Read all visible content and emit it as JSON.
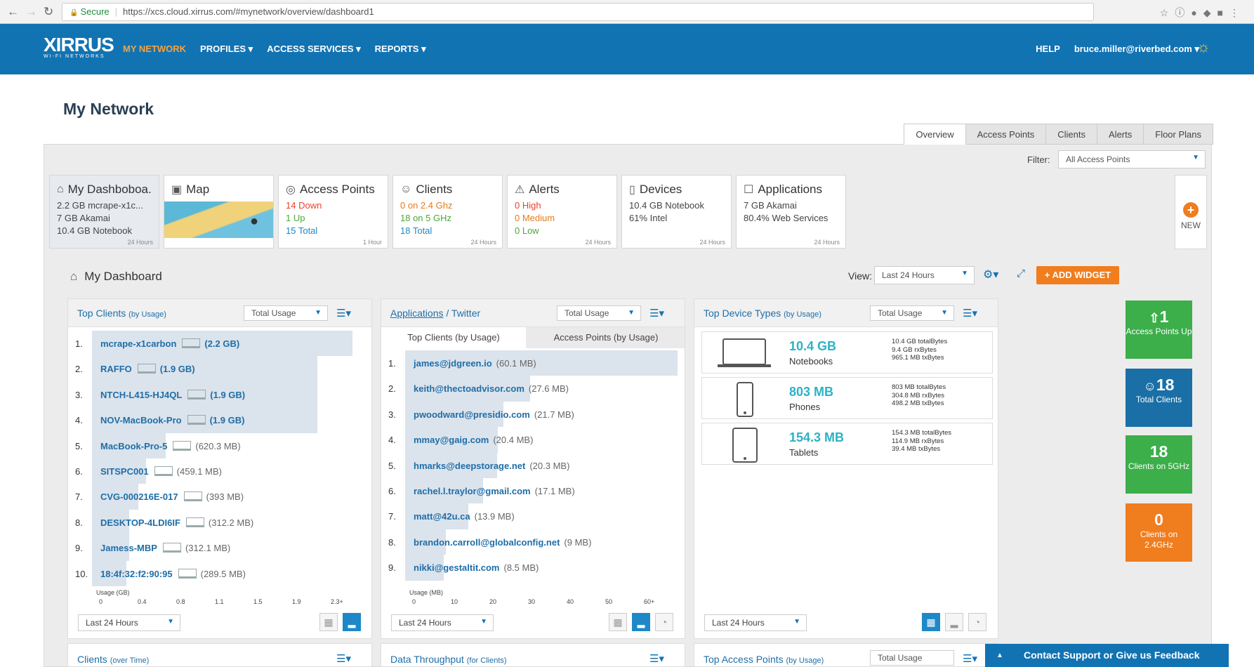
{
  "browser": {
    "secure_label": "Secure",
    "url": "https://xcs.cloud.xirrus.com/#mynetwork/overview/dashboard1"
  },
  "header": {
    "logo": "XIRRUS",
    "logo_sub": "WI-FI NETWORKS",
    "nav": [
      "MY NETWORK",
      "PROFILES ▾",
      "ACCESS SERVICES ▾",
      "REPORTS ▾"
    ],
    "help": "HELP",
    "user": "bruce.miller@riverbed.com ▾"
  },
  "page": {
    "title": "My Network",
    "tabs": [
      "Overview",
      "Access Points",
      "Clients",
      "Alerts",
      "Floor Plans"
    ],
    "filter_label": "Filter:",
    "filter_value": "All Access Points"
  },
  "cards": {
    "dashboard": {
      "title": "My Dashboboa...",
      "lines": [
        "2.2 GB mcrape-x1c...",
        "7 GB Akamai",
        "10.4 GB Notebook"
      ],
      "age": "24 Hours"
    },
    "map": {
      "title": "Map"
    },
    "access_points": {
      "title": "Access Points",
      "lines": [
        "14 Down",
        "1 Up",
        "15 Total"
      ],
      "age": "1 Hour"
    },
    "clients": {
      "title": "Clients",
      "lines": [
        "0 on 2.4 Ghz",
        "18 on 5 GHz",
        "18 Total"
      ],
      "age": "24 Hours"
    },
    "alerts": {
      "title": "Alerts",
      "lines": [
        "0 High",
        "0 Medium",
        "0 Low"
      ],
      "age": "24 Hours"
    },
    "devices": {
      "title": "Devices",
      "lines": [
        "10.4 GB Notebook",
        "61% Intel"
      ],
      "age": "24 Hours"
    },
    "applications": {
      "title": "Applications",
      "lines": [
        "7 GB Akamai",
        "80.4% Web Services"
      ],
      "age": "24 Hours"
    },
    "new_label": "NEW"
  },
  "dashboard": {
    "title": "My Dashboard",
    "view_label": "View:",
    "view_value": "Last 24 Hours",
    "add_widget": "+ ADD WIDGET"
  },
  "top_clients": {
    "title": "Top Clients",
    "qualifier": "(by Usage)",
    "select": "Total Usage",
    "axis_label": "Usage (GB)",
    "ticks": [
      "0",
      "0.4",
      "0.8",
      "1.1",
      "1.5",
      "1.9",
      "2.3+"
    ],
    "footer_select": "Last 24 Hours",
    "rows": [
      {
        "rank": "1.",
        "name": "mcrape-x1carbon",
        "value": "(2.2 GB)",
        "usage": 2.2
      },
      {
        "rank": "2.",
        "name": "RAFFO",
        "value": "(1.9 GB)",
        "usage": 1.9
      },
      {
        "rank": "3.",
        "name": "NTCH-L415-HJ4QL",
        "value": "(1.9 GB)",
        "usage": 1.9
      },
      {
        "rank": "4.",
        "name": "NOV-MacBook-Pro",
        "value": "(1.9 GB)",
        "usage": 1.9
      },
      {
        "rank": "5.",
        "name": "MacBook-Pro-5",
        "value": "(620.3 MB)",
        "usage": 0.6203
      },
      {
        "rank": "6.",
        "name": "SITSPC001",
        "value": "(459.1 MB)",
        "usage": 0.4591
      },
      {
        "rank": "7.",
        "name": "CVG-000216E-017",
        "value": "(393 MB)",
        "usage": 0.393
      },
      {
        "rank": "8.",
        "name": "DESKTOP-4LDI6IF",
        "value": "(312.2 MB)",
        "usage": 0.3122
      },
      {
        "rank": "9.",
        "name": "Jamess-MBP",
        "value": "(312.1 MB)",
        "usage": 0.3121
      },
      {
        "rank": "10.",
        "name": "18:4f:32:f2:90:95",
        "value": "(289.5 MB)",
        "usage": 0.2895
      }
    ]
  },
  "applications": {
    "title_link": "Applications",
    "title_rest": " / Twitter",
    "select": "Total Usage",
    "subtabs": [
      "Top Clients (by Usage)",
      "Access Points (by Usage)"
    ],
    "axis_label": "Usage (MB)",
    "ticks": [
      "0",
      "10",
      "20",
      "30",
      "40",
      "50",
      "60+"
    ],
    "footer_select": "Last 24 Hours",
    "rows": [
      {
        "rank": "1.",
        "name": "james@jdgreen.io",
        "value": "(60.1 MB)",
        "usage": 60.1
      },
      {
        "rank": "2.",
        "name": "keith@thectoadvisor.com",
        "value": "(27.6 MB)",
        "usage": 27.6
      },
      {
        "rank": "3.",
        "name": "pwoodward@presidio.com",
        "value": "(21.7 MB)",
        "usage": 21.7
      },
      {
        "rank": "4.",
        "name": "mmay@gaig.com",
        "value": "(20.4 MB)",
        "usage": 20.4
      },
      {
        "rank": "5.",
        "name": "hmarks@deepstorage.net",
        "value": "(20.3 MB)",
        "usage": 20.3
      },
      {
        "rank": "6.",
        "name": "rachel.l.traylor@gmail.com",
        "value": "(17.1 MB)",
        "usage": 17.1
      },
      {
        "rank": "7.",
        "name": "matt@42u.ca",
        "value": "(13.9 MB)",
        "usage": 13.9
      },
      {
        "rank": "8.",
        "name": "brandon.carroll@globalconfig.net",
        "value": "(9 MB)",
        "usage": 9
      },
      {
        "rank": "9.",
        "name": "nikki@gestaltit.com",
        "value": "(8.5 MB)",
        "usage": 8.5
      }
    ]
  },
  "top_devices": {
    "title": "Top Device Types",
    "qualifier": "(by Usage)",
    "select": "Total Usage",
    "footer_select": "Last 24 Hours",
    "rows": [
      {
        "size": "10.4 GB",
        "type": "Notebooks",
        "details": [
          "10.4 GB totalBytes",
          "9.4 GB rxBytes",
          "965.1 MB txBytes"
        ]
      },
      {
        "size": "803 MB",
        "type": "Phones",
        "details": [
          "803 MB totalBytes",
          "304.8 MB rxBytes",
          "498.2 MB txBytes"
        ]
      },
      {
        "size": "154.3 MB",
        "type": "Tablets",
        "details": [
          "154.3 MB totalBytes",
          "114.9 MB rxBytes",
          "39.4 MB txBytes"
        ]
      }
    ]
  },
  "tiles": [
    {
      "value": "1",
      "label": "Access Points Up",
      "color": "#3cae4a"
    },
    {
      "value": "18",
      "label": "Total Clients",
      "color": "#1a6fa6"
    },
    {
      "value": "18",
      "label": "Clients on 5GHz",
      "color": "#3cae4a"
    },
    {
      "value": "0",
      "label": "Clients on 2.4GHz",
      "color": "#f07d1e"
    }
  ],
  "lower_widgets": {
    "clients": {
      "title": "Clients",
      "qualifier": "(over Time)"
    },
    "throughput": {
      "title": "Data Throughput",
      "qualifier": "(for Clients)"
    },
    "access_points": {
      "title": "Top Access Points",
      "qualifier": "(by Usage)",
      "select": "Total Usage"
    }
  },
  "feedback": "Contact Support or Give us Feedback"
}
